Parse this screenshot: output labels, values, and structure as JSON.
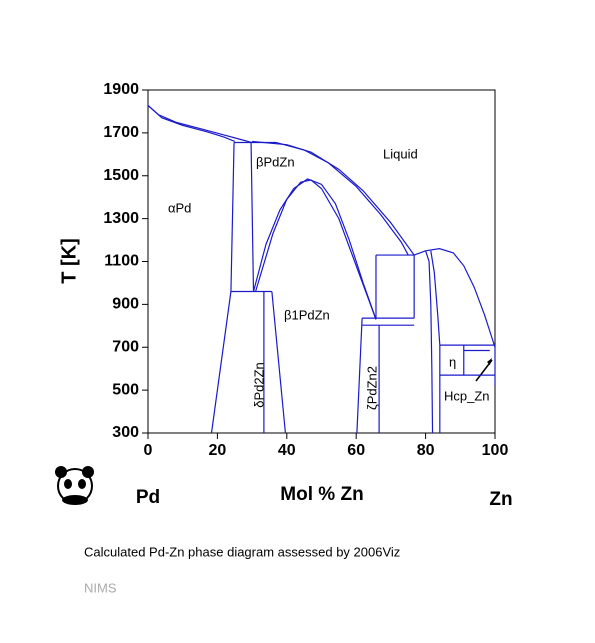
{
  "chart_data": {
    "type": "line",
    "x_label": "Mol % Zn",
    "y_label": "T [K]",
    "left_element": "Pd",
    "right_element": "Zn",
    "caption": "Calculated Pd-Zn phase diagram assessed by 2006Viz",
    "source": "NIMS",
    "annotations": [
      "Liquid",
      "βPdZn",
      "αPd",
      "β1PdZn",
      "δPd2Zn",
      "ζPdZn2",
      "η",
      "Hcp_Zn"
    ],
    "xlim": [
      0,
      100
    ],
    "xticks": [
      0,
      20,
      40,
      60,
      80,
      100
    ],
    "ylim": [
      300,
      1900
    ],
    "yticks": [
      300,
      500,
      700,
      900,
      1100,
      1300,
      1500,
      1700,
      1900
    ],
    "color": "#1a1acc",
    "series": [
      {
        "x": [
          0,
          3,
          8,
          15,
          22,
          27,
          30
        ],
        "values": [
          1828,
          1785,
          1750,
          1720,
          1690,
          1668,
          1655
        ]
      },
      {
        "x": [
          0,
          4,
          10,
          17,
          22,
          25
        ],
        "values": [
          1828,
          1770,
          1735,
          1705,
          1680,
          1660
        ]
      },
      {
        "x": [
          24.8,
          37
        ],
        "values": [
          1655,
          1655
        ]
      },
      {
        "x": [
          30,
          40,
          47,
          55,
          62,
          70,
          76.7
        ],
        "values": [
          1660,
          1645,
          1610,
          1530,
          1430,
          1280,
          1130
        ]
      },
      {
        "x": [
          37,
          45,
          52,
          60,
          67,
          73,
          75
        ],
        "values": [
          1655,
          1620,
          1560,
          1450,
          1320,
          1190,
          1130
        ]
      },
      {
        "x": [
          24.8,
          23.9
        ],
        "values": [
          1655,
          960
        ]
      },
      {
        "x": [
          29.7,
          30.4
        ],
        "values": [
          1655,
          960
        ]
      },
      {
        "x": [
          23.9,
          35.7
        ],
        "values": [
          960,
          960
        ]
      },
      {
        "x": [
          23.9,
          18.3
        ],
        "values": [
          960,
          300
        ]
      },
      {
        "x": [
          33.4,
          33.4
        ],
        "values": [
          960,
          300
        ]
      },
      {
        "x": [
          35.7,
          39.6
        ],
        "values": [
          960,
          300
        ]
      },
      {
        "x": [
          30.4,
          34,
          38,
          42,
          46,
          50,
          54,
          58,
          62,
          65.7
        ],
        "values": [
          960,
          1180,
          1340,
          1440,
          1485,
          1460,
          1370,
          1200,
          1000,
          830
        ]
      },
      {
        "x": [
          31,
          36,
          40,
          44,
          47,
          50,
          55,
          60,
          65.7
        ],
        "values": [
          960,
          1230,
          1390,
          1470,
          1480,
          1440,
          1300,
          1080,
          830
        ]
      },
      {
        "x": [
          65.7,
          76.7
        ],
        "values": [
          1130,
          1130
        ]
      },
      {
        "x": [
          65.7,
          65.7
        ],
        "values": [
          1130,
          836
        ]
      },
      {
        "x": [
          76.7,
          76.7
        ],
        "values": [
          1130,
          836
        ]
      },
      {
        "x": [
          61.7,
          76.7
        ],
        "values": [
          836,
          836
        ]
      },
      {
        "x": [
          61.7,
          76.7
        ],
        "values": [
          803,
          803
        ]
      },
      {
        "x": [
          61.7,
          60.2
        ],
        "values": [
          836,
          300
        ]
      },
      {
        "x": [
          66.6,
          66.6
        ],
        "values": [
          803,
          300
        ]
      },
      {
        "x": [
          76.7,
          80,
          84,
          88,
          91,
          94,
          97,
          100
        ],
        "values": [
          1130,
          1150,
          1160,
          1140,
          1080,
          980,
          850,
          700
        ]
      },
      {
        "x": [
          80,
          81,
          81.5,
          81.8,
          82
        ],
        "values": [
          1150,
          1100,
          900,
          600,
          300
        ]
      },
      {
        "x": [
          81.5,
          82.5,
          83.5,
          84.1,
          84.1
        ],
        "values": [
          1150,
          1050,
          850,
          710,
          300
        ]
      },
      {
        "x": [
          84.1,
          100
        ],
        "values": [
          710,
          710
        ]
      },
      {
        "x": [
          84.1,
          100
        ],
        "values": [
          570,
          570
        ]
      },
      {
        "x": [
          91,
          91
        ],
        "values": [
          710,
          570
        ]
      },
      {
        "x": [
          91,
          98.5
        ],
        "values": [
          685,
          685
        ]
      },
      {
        "x": [
          100,
          100
        ],
        "values": [
          710,
          520
        ]
      }
    ]
  }
}
